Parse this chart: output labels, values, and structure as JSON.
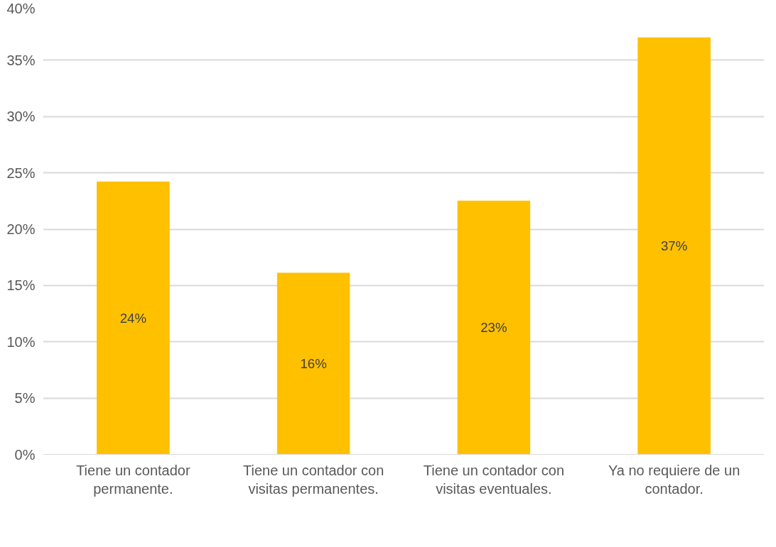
{
  "chart_data": {
    "type": "bar",
    "categories": [
      "Tiene un contador permanente.",
      "Tiene un contador con visitas permanentes.",
      "Tiene un contador con visitas eventuales.",
      "Ya no requiere de un contador."
    ],
    "values": [
      24.2,
      16.1,
      22.5,
      37.0
    ],
    "value_labels": [
      "24%",
      "16%",
      "23%",
      "37%"
    ],
    "color": "#ffc000",
    "ylim": [
      0,
      40
    ],
    "yticks": [
      {
        "value": 0,
        "label": "0%"
      },
      {
        "value": 5,
        "label": "5%"
      },
      {
        "value": 10,
        "label": "10%"
      },
      {
        "value": 15,
        "label": "15%"
      },
      {
        "value": 20,
        "label": "20%"
      },
      {
        "value": 25,
        "label": "25%"
      },
      {
        "value": 30,
        "label": "30%"
      },
      {
        "value": 35,
        "label": "35%"
      },
      {
        "value": 40,
        "label": "40%"
      }
    ],
    "grid": "y"
  }
}
